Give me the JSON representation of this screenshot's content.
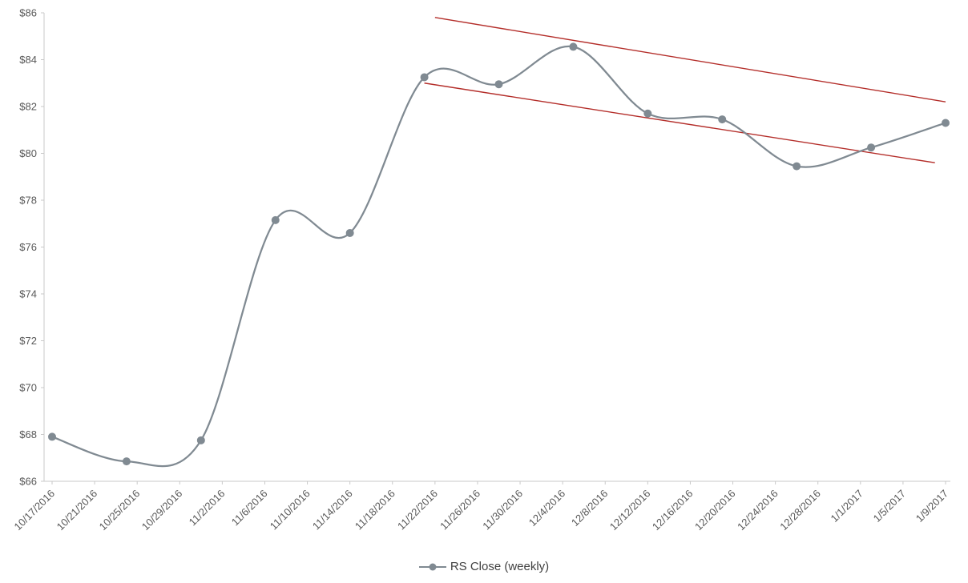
{
  "chart_data": {
    "type": "line",
    "title": "",
    "grid": false,
    "legend_position": "bottom",
    "x_start_date": "10/17/2016",
    "x_end_date": "1/9/2017",
    "ylim": [
      66,
      86
    ],
    "y_ticks": [
      "$66",
      "$68",
      "$70",
      "$72",
      "$74",
      "$76",
      "$78",
      "$80",
      "$82",
      "$84",
      "$86"
    ],
    "x_tick_labels": [
      "10/17/2016",
      "10/21/2016",
      "10/25/2016",
      "10/29/2016",
      "11/2/2016",
      "11/6/2016",
      "11/10/2016",
      "11/14/2016",
      "11/18/2016",
      "11/22/2016",
      "11/26/2016",
      "11/30/2016",
      "12/4/2016",
      "12/8/2016",
      "12/12/2016",
      "12/16/2016",
      "12/20/2016",
      "12/24/2016",
      "12/28/2016",
      "1/1/2017",
      "1/5/2017",
      "1/9/2017"
    ],
    "series": [
      {
        "name": "RS Close (weekly)",
        "color": "#808a92",
        "marker": "circle",
        "smooth": true,
        "points": [
          {
            "date": "10/17/2016",
            "value": 67.9
          },
          {
            "date": "10/24/2016",
            "value": 66.85
          },
          {
            "date": "10/31/2016",
            "value": 67.75
          },
          {
            "date": "11/7/2016",
            "value": 77.15
          },
          {
            "date": "11/14/2016",
            "value": 76.6
          },
          {
            "date": "11/21/2016",
            "value": 83.25
          },
          {
            "date": "11/28/2016",
            "value": 82.95
          },
          {
            "date": "12/5/2016",
            "value": 84.55
          },
          {
            "date": "12/12/2016",
            "value": 81.7
          },
          {
            "date": "12/19/2016",
            "value": 81.45
          },
          {
            "date": "12/26/2016",
            "value": 79.45
          },
          {
            "date": "1/2/2017",
            "value": 80.25
          },
          {
            "date": "1/9/2017",
            "value": 81.3
          }
        ]
      }
    ],
    "trendlines": [
      {
        "name": "upper-channel",
        "color": "#b42e2a",
        "start": {
          "date": "11/22/2016",
          "value": 85.8
        },
        "end": {
          "date": "1/9/2017",
          "value": 82.2
        }
      },
      {
        "name": "lower-channel",
        "color": "#b42e2a",
        "start": {
          "date": "11/21/2016",
          "value": 83.0
        },
        "end": {
          "date": "1/8/2017",
          "value": 79.6
        }
      }
    ],
    "axis_color": "#c9c9c9",
    "tick_label_color": "#595959"
  }
}
